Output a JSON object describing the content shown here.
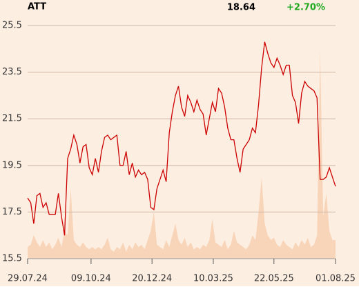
{
  "chart_data": {
    "type": "line",
    "title": "ATT",
    "price": "18.64",
    "change": "+2.70%",
    "change_color": "#22a822",
    "background": "#fdeee2",
    "xlim": [
      0,
      100
    ],
    "xticks": [
      {
        "value": 0,
        "label": "29.07.24"
      },
      {
        "value": 20.6,
        "label": "09.10.24"
      },
      {
        "value": 40.4,
        "label": "20.12.24"
      },
      {
        "value": 60.3,
        "label": "10.03.25"
      },
      {
        "value": 80,
        "label": "22.05.25"
      },
      {
        "value": 100,
        "label": "01.08.25"
      }
    ],
    "ylim": [
      15.5,
      25.5
    ],
    "yticks": [
      15.5,
      17.5,
      19.5,
      21.5,
      23.5,
      25.5
    ],
    "grid": true,
    "y2lim": [
      0,
      100
    ],
    "series": [
      {
        "type": "line",
        "color": "#cc0000",
        "values": [
          18.1,
          17.9,
          17.0,
          18.2,
          18.3,
          17.7,
          17.9,
          17.4,
          17.4,
          17.4,
          18.3,
          17.3,
          16.5,
          19.8,
          20.2,
          20.8,
          20.4,
          19.6,
          20.3,
          20.4,
          19.4,
          19.1,
          19.8,
          19.2,
          20.1,
          20.7,
          20.8,
          20.6,
          20.7,
          20.8,
          19.5,
          19.5,
          20.1,
          19.1,
          19.6,
          19.0,
          19.3,
          19.1,
          19.2,
          18.9,
          17.7,
          17.6,
          18.5,
          18.9,
          19.3,
          18.8,
          20.9,
          21.8,
          22.5,
          22.9,
          22.0,
          21.6,
          22.5,
          22.2,
          21.8,
          22.3,
          21.9,
          21.7,
          20.8,
          21.5,
          22.2,
          21.8,
          22.8,
          22.6,
          22.0,
          21.1,
          20.6,
          20.6,
          19.8,
          19.2,
          20.2,
          20.4,
          20.6,
          21.1,
          20.9,
          22.1,
          23.7,
          24.8,
          24.3,
          23.9,
          23.7,
          24.1,
          23.8,
          23.4,
          23.8,
          23.8,
          22.5,
          22.2,
          21.3,
          22.6,
          23.1,
          22.9,
          22.8,
          22.7,
          22.4,
          18.9,
          18.9,
          19.0,
          19.4,
          19.0,
          18.6
        ]
      },
      {
        "type": "area",
        "axis": "y2",
        "color": "#f8d4b8",
        "values": [
          5,
          6,
          10,
          7,
          5,
          8,
          5,
          7,
          4,
          6,
          9,
          5,
          12,
          10,
          30,
          8,
          6,
          5,
          7,
          5,
          4,
          5,
          4,
          5,
          4,
          6,
          9,
          4,
          3,
          5,
          4,
          7,
          3,
          6,
          4,
          7,
          5,
          6,
          4,
          8,
          12,
          20,
          6,
          5,
          4,
          8,
          5,
          10,
          15,
          8,
          6,
          9,
          5,
          7,
          4,
          5,
          4,
          6,
          5,
          8,
          17,
          7,
          6,
          5,
          8,
          4,
          6,
          12,
          7,
          6,
          5,
          4,
          6,
          10,
          8,
          20,
          35,
          15,
          10,
          8,
          9,
          6,
          5,
          8,
          6,
          5,
          4,
          7,
          5,
          8,
          6,
          9,
          5,
          6,
          10,
          89,
          18,
          28,
          12,
          8,
          8
        ]
      }
    ]
  }
}
